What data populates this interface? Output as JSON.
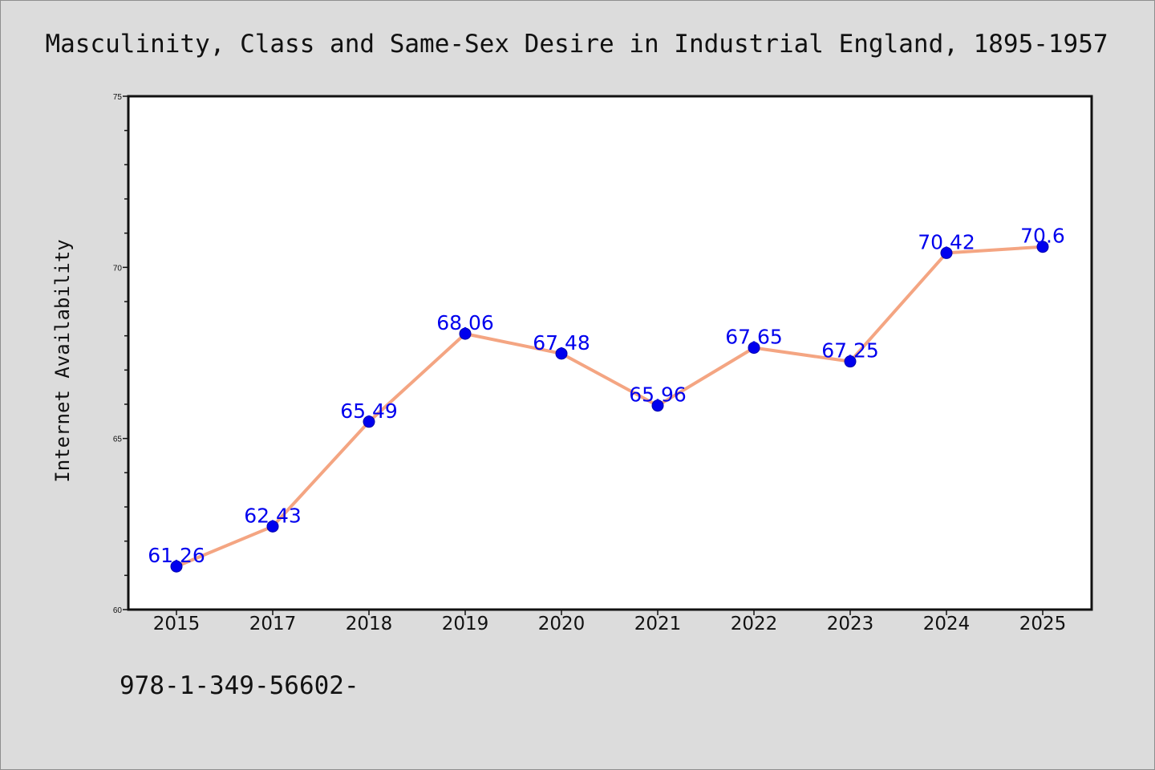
{
  "chart_data": {
    "type": "line",
    "title": "Masculinity, Class and Same-Sex Desire in Industrial England, 1895-1957",
    "xlabel": "",
    "ylabel": "Internet Availability",
    "categories": [
      "2015",
      "2017",
      "2018",
      "2019",
      "2020",
      "2021",
      "2022",
      "2023",
      "2024",
      "2025"
    ],
    "series": [
      {
        "values": [
          61.26,
          62.43,
          65.49,
          68.06,
          67.48,
          65.96,
          67.65,
          67.25,
          70.42,
          70.6
        ],
        "data_labels": [
          "61.26",
          "62.43",
          "65.49",
          "68.06",
          "67.48",
          "65.96",
          "67.65",
          "67.25",
          "70.42",
          "70.6"
        ]
      }
    ],
    "ylim": [
      60,
      75
    ],
    "yticks_major": [
      60,
      65,
      70,
      75
    ],
    "yticks_minor_step": 1,
    "grid": false,
    "legend": "none",
    "colors": {
      "line": "#f4a582",
      "marker": "#0000ee",
      "data_label": "#0000ee",
      "plot_background": "#ffffff",
      "figure_background": "#dcdcdc"
    }
  },
  "footer": {
    "text": "978-1-349-56602-"
  }
}
